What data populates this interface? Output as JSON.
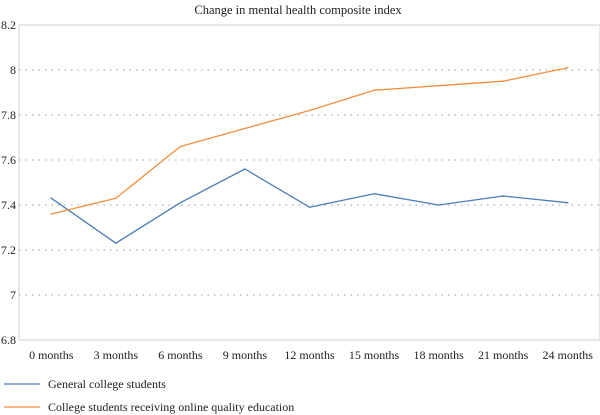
{
  "chart_data": {
    "type": "line",
    "title": "Change in mental health composite index",
    "xlabel": "",
    "ylabel": "",
    "categories": [
      "0 months",
      "3 months",
      "6 months",
      "9 months",
      "12 months",
      "15 months",
      "18 months",
      "21 months",
      "24 months"
    ],
    "ylim": [
      6.8,
      8.2
    ],
    "yticks": [
      "6.8",
      "7",
      "7.2",
      "7.4",
      "7.6",
      "7.8",
      "8",
      "8.2"
    ],
    "grid": "horizontal-dotted",
    "legend_position": "bottom-left",
    "series": [
      {
        "name": "General college students",
        "color": "#4a7ebb",
        "values": [
          7.43,
          7.23,
          7.41,
          7.56,
          7.39,
          7.45,
          7.4,
          7.44,
          7.41
        ]
      },
      {
        "name": "College students receiving online quality education",
        "color": "#f28e3c",
        "values": [
          7.36,
          7.43,
          7.66,
          7.74,
          7.82,
          7.91,
          7.93,
          7.95,
          8.01
        ]
      }
    ]
  }
}
